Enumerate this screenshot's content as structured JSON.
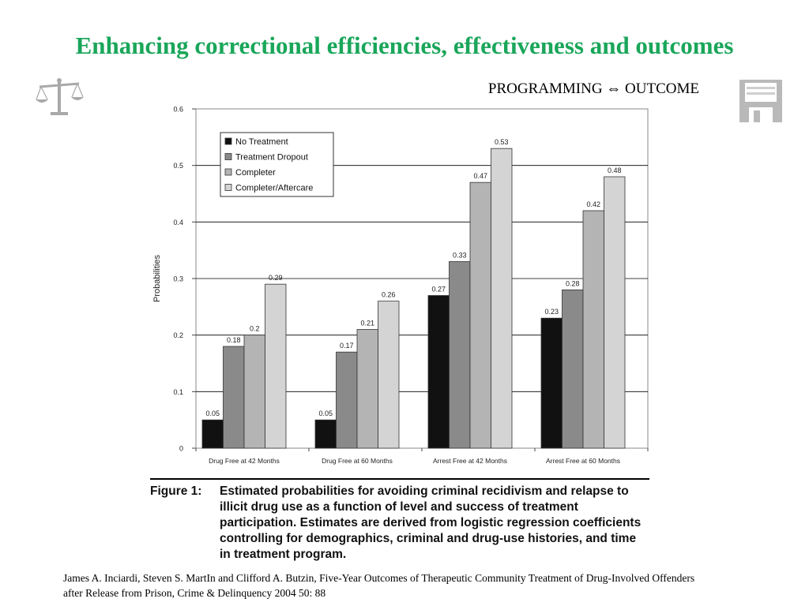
{
  "slide": {
    "title": "Enhancing correctional efficiencies, effectiveness and outcomes",
    "subtitle": "PROGRAMMING ⇔ OUTCOME",
    "caption_label": "Figure 1:",
    "caption_text": "Estimated probabilities for avoiding criminal recidivism and relapse to illicit drug use as a function of level and success of treatment participation. Estimates are derived from logistic regression coefficients controlling for demographics, criminal and drug-use histories, and time in treatment program.",
    "citation": "James A. Inciardi, Steven S. MartIn and Clifford A. Butzin, Five-Year Outcomes of Therapeutic Community Treatment of Drug-Involved Offenders after Release from Prison, Crime & Delinquency 2004 50: 88",
    "icons": [
      "scales-of-justice-icon",
      "floppy-disk-icon"
    ]
  },
  "chart_data": {
    "type": "bar",
    "title": "",
    "xlabel": "",
    "ylabel": "Probabilities",
    "ylim": [
      0,
      0.6
    ],
    "yticks": [
      "0",
      "0.1",
      "0.2",
      "0.3",
      "0.4",
      "0.5",
      "0.6"
    ],
    "grid": true,
    "legend_position": "top-left",
    "categories": [
      "Drug Free at 42 Months",
      "Drug Free at 60 Months",
      "Arrest Free at 42 Months",
      "Arrest Free at 60 Months"
    ],
    "series": [
      {
        "name": "No Treatment",
        "color": "#111111",
        "values": [
          0.05,
          0.05,
          0.27,
          0.23
        ],
        "labels": [
          "0.05",
          "0.05",
          "0.27",
          "0.23"
        ]
      },
      {
        "name": "Treatment Dropout",
        "color": "#8a8a8a",
        "values": [
          0.18,
          0.17,
          0.33,
          0.28
        ],
        "labels": [
          "0.18",
          "0.17",
          "0.33",
          "0.28"
        ]
      },
      {
        "name": "Completer",
        "color": "#b4b4b4",
        "values": [
          0.2,
          0.21,
          0.47,
          0.42
        ],
        "labels": [
          "0.2",
          "0.21",
          "0.47",
          "0.42"
        ]
      },
      {
        "name": "Completer/Aftercare",
        "color": "#d4d4d4",
        "values": [
          0.29,
          0.26,
          0.53,
          0.48
        ],
        "labels": [
          "0.29",
          "0.26",
          "0.53",
          "0.48"
        ]
      }
    ]
  }
}
